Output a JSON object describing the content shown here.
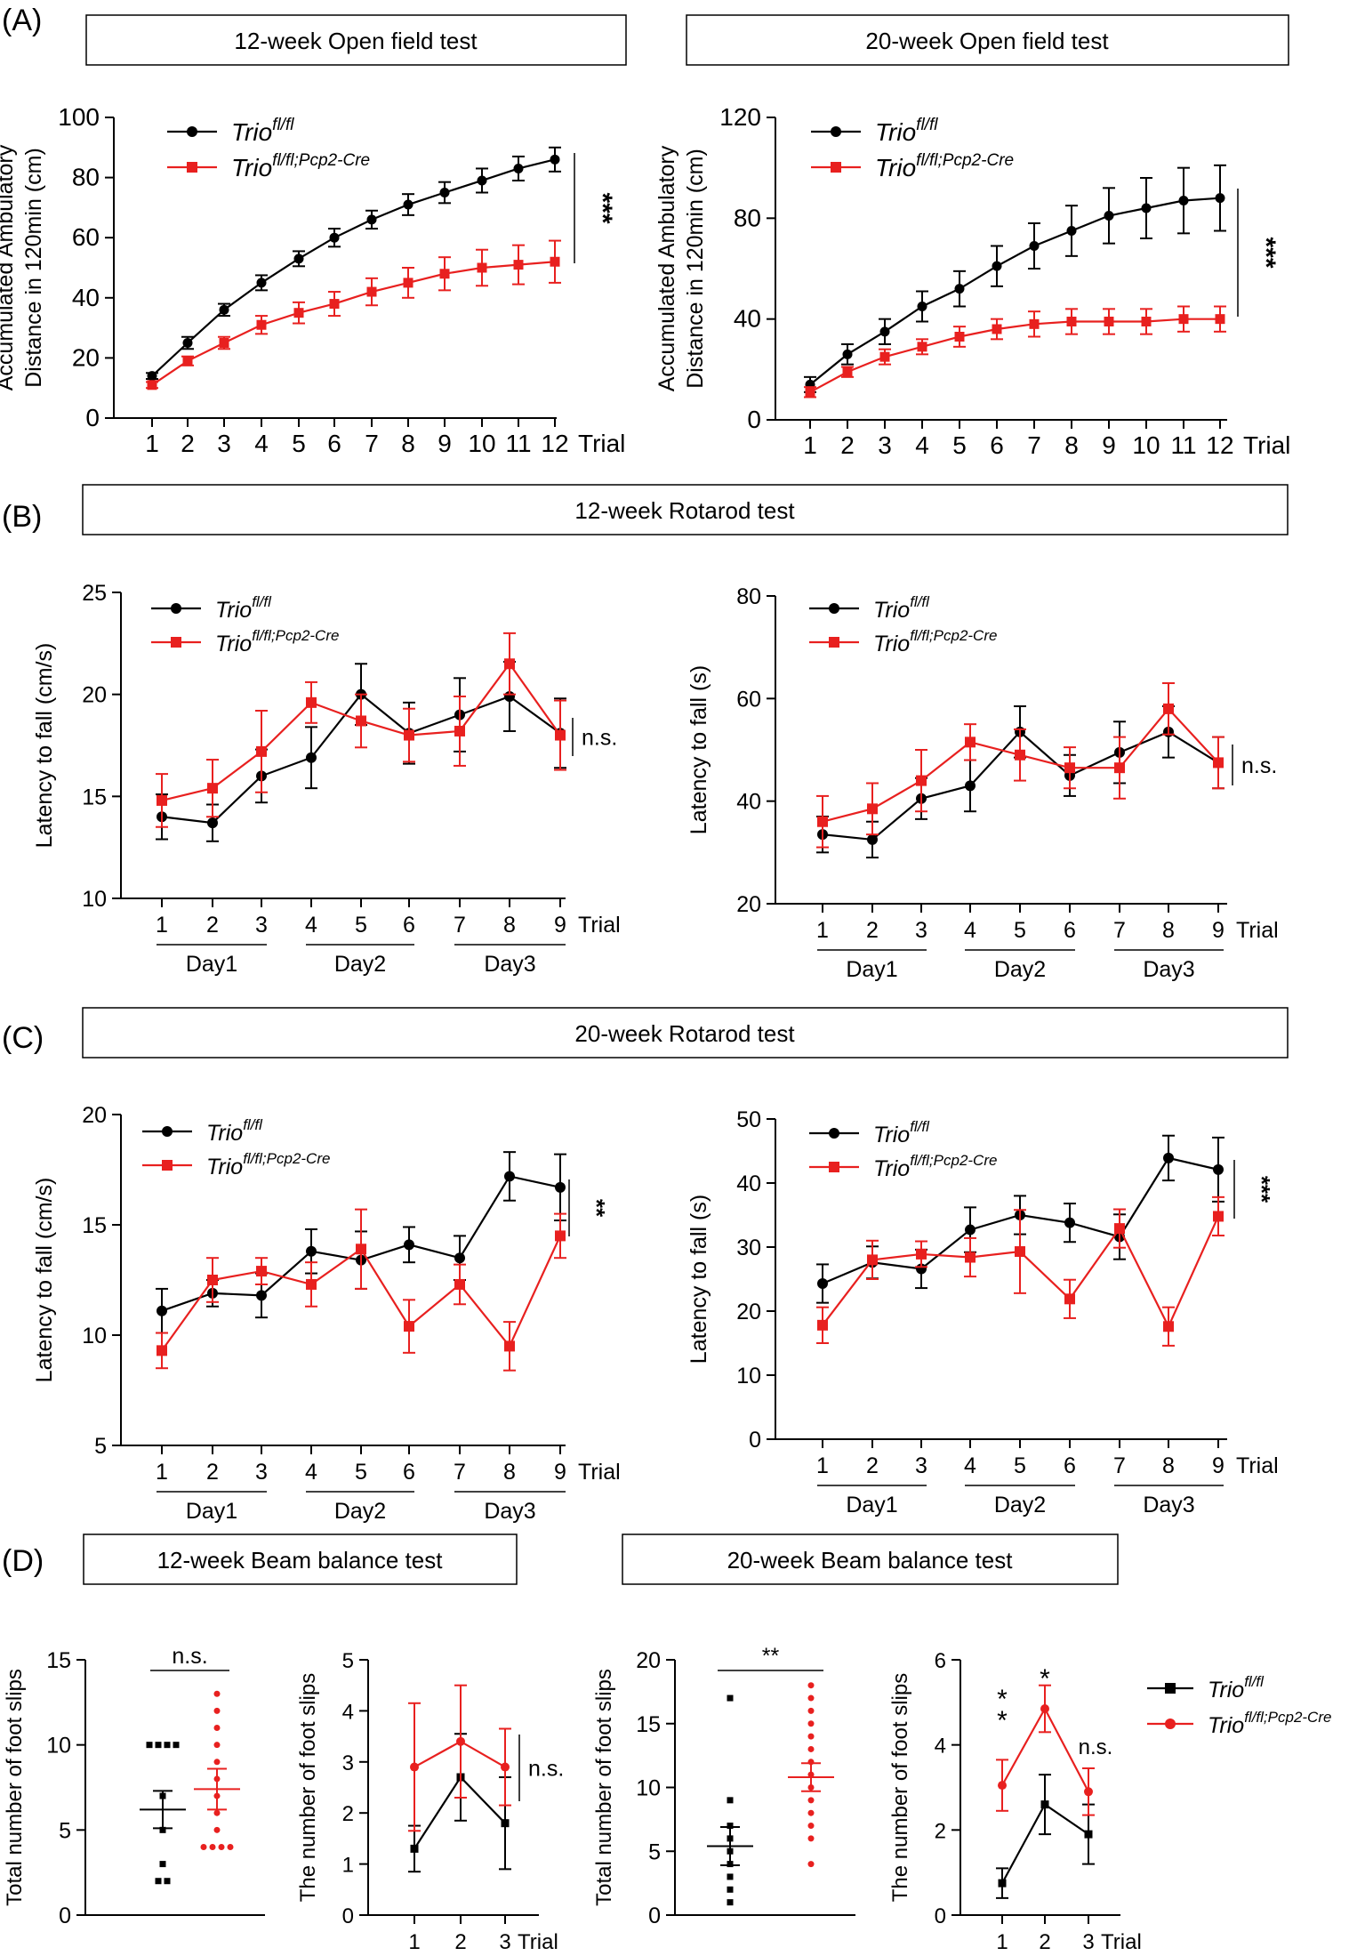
{
  "colors": {
    "black": "#000000",
    "red": "#e8201f"
  },
  "legend": {
    "trio": {
      "base": "Trio",
      "sup": "fl/fl"
    },
    "cre": {
      "base": "Trio",
      "sup": "fl/fl;Pcp2-Cre"
    }
  },
  "labels": {
    "trial": "Trial",
    "day1": "Day1",
    "day2": "Day2",
    "day3": "Day3",
    "ns": "n.s.",
    "p3": "***",
    "p2": "**",
    "p1": "*"
  },
  "panels": {
    "A": {
      "letter": "(A)",
      "title_left": "12-week Open field test",
      "title_right": "20-week Open field test"
    },
    "B": {
      "letter": "(B)",
      "title": "12-week Rotarod test"
    },
    "C": {
      "letter": "(C)",
      "title": "20-week Rotarod test"
    },
    "D": {
      "letter": "(D)",
      "title_left": "12-week Beam balance test",
      "title_right": "20-week Beam balance test"
    }
  },
  "chart_data": [
    {
      "id": "A1",
      "type": "line",
      "ylabel": [
        "Accumulated Ambulatory",
        "Distance in 120min (cm)"
      ],
      "ylim": [
        0,
        100
      ],
      "yticks": [
        0,
        20,
        40,
        60,
        80,
        100
      ],
      "x": [
        1,
        2,
        3,
        4,
        5,
        6,
        7,
        8,
        9,
        10,
        11,
        12
      ],
      "series": [
        {
          "name": "Trio fl/fl",
          "values": [
            14,
            25,
            36,
            45,
            53,
            60,
            66,
            71,
            75,
            79,
            83,
            86
          ],
          "err": [
            1,
            2,
            2,
            2.5,
            2.5,
            3,
            3,
            3.5,
            3.5,
            4,
            4,
            4
          ]
        },
        {
          "name": "Trio fl/fl;Pcp2-Cre",
          "values": [
            11,
            19,
            25,
            31,
            35,
            38,
            42,
            45,
            48,
            50,
            51,
            52
          ],
          "err": [
            1,
            1.5,
            2,
            3,
            3.5,
            4,
            4.5,
            5,
            5.5,
            6,
            6.5,
            7
          ]
        }
      ],
      "significance": "***"
    },
    {
      "id": "A2",
      "type": "line",
      "ylabel": [
        "Accumulated Ambulatory",
        "Distance in 120min (cm)"
      ],
      "ylim": [
        0,
        120
      ],
      "yticks": [
        0,
        40,
        80,
        120
      ],
      "x": [
        1,
        2,
        3,
        4,
        5,
        6,
        7,
        8,
        9,
        10,
        11,
        12
      ],
      "series": [
        {
          "name": "Trio fl/fl",
          "values": [
            14,
            26,
            35,
            45,
            52,
            61,
            69,
            75,
            81,
            84,
            87,
            88
          ],
          "err": [
            3,
            4,
            5,
            6,
            7,
            8,
            9,
            10,
            11,
            12,
            13,
            13
          ]
        },
        {
          "name": "Trio fl/fl;Pcp2-Cre",
          "values": [
            11,
            19,
            25,
            29,
            33,
            36,
            38,
            39,
            39,
            39,
            40,
            40
          ],
          "err": [
            2,
            2,
            3,
            3,
            4,
            4,
            5,
            5,
            5,
            5,
            5,
            5
          ]
        }
      ],
      "significance": "***"
    },
    {
      "id": "B1",
      "type": "line",
      "ylabel": [
        "Latency to fall (cm/s)"
      ],
      "ylim": [
        10,
        25
      ],
      "yticks": [
        10,
        15,
        20,
        25
      ],
      "x": [
        1,
        2,
        3,
        4,
        5,
        6,
        7,
        8,
        9
      ],
      "series": [
        {
          "name": "Trio fl/fl",
          "values": [
            14.0,
            13.7,
            16.0,
            16.9,
            20.0,
            18.1,
            19.0,
            19.9,
            18.1
          ],
          "err": [
            1.1,
            0.9,
            1.3,
            1.5,
            1.5,
            1.5,
            1.8,
            1.7,
            1.7
          ]
        },
        {
          "name": "Trio fl/fl;Pcp2-Cre",
          "values": [
            14.8,
            15.4,
            17.2,
            19.6,
            18.7,
            18.0,
            18.2,
            21.5,
            18.0
          ],
          "err": [
            1.3,
            1.4,
            2.0,
            1.0,
            1.3,
            1.3,
            1.7,
            1.5,
            1.7
          ]
        }
      ],
      "significance": "n.s."
    },
    {
      "id": "B2",
      "type": "line",
      "ylabel": [
        "Latency to fall (s)"
      ],
      "ylim": [
        20,
        80
      ],
      "yticks": [
        20,
        40,
        60,
        80
      ],
      "x": [
        1,
        2,
        3,
        4,
        5,
        6,
        7,
        8,
        9
      ],
      "series": [
        {
          "name": "Trio fl/fl",
          "values": [
            33.5,
            32.5,
            40.5,
            43,
            53.5,
            45,
            49.5,
            53.5,
            47.5
          ],
          "err": [
            3.5,
            3.5,
            4,
            5,
            5,
            4,
            6,
            5,
            5
          ]
        },
        {
          "name": "Trio fl/fl;Pcp2-Cre",
          "values": [
            36,
            38.5,
            44,
            51.5,
            49,
            46.5,
            46.5,
            58,
            47.5
          ],
          "err": [
            5,
            5,
            6,
            3.5,
            5,
            4,
            6,
            5,
            5
          ]
        }
      ],
      "significance": "n.s."
    },
    {
      "id": "C1",
      "type": "line",
      "ylabel": [
        "Latency to fall (cm/s)"
      ],
      "ylim": [
        5,
        20
      ],
      "yticks": [
        5,
        10,
        15,
        20
      ],
      "x": [
        1,
        2,
        3,
        4,
        5,
        6,
        7,
        8,
        9
      ],
      "series": [
        {
          "name": "Trio fl/fl",
          "values": [
            11.1,
            11.9,
            11.8,
            13.8,
            13.4,
            14.1,
            13.5,
            17.2,
            16.7
          ],
          "err": [
            1.0,
            0.6,
            1.0,
            1.0,
            1.3,
            0.8,
            1.0,
            1.1,
            1.5
          ]
        },
        {
          "name": "Trio fl/fl;Pcp2-Cre",
          "values": [
            9.3,
            12.5,
            12.9,
            12.3,
            13.9,
            10.4,
            12.3,
            9.5,
            14.5
          ],
          "err": [
            0.8,
            1.0,
            0.6,
            1.0,
            1.8,
            1.2,
            0.9,
            1.1,
            1.0
          ]
        }
      ],
      "significance": "**"
    },
    {
      "id": "C2",
      "type": "line",
      "ylabel": [
        "Latency to fall (s)"
      ],
      "ylim": [
        0,
        50
      ],
      "yticks": [
        0,
        10,
        20,
        30,
        40,
        50
      ],
      "x": [
        1,
        2,
        3,
        4,
        5,
        6,
        7,
        8,
        9
      ],
      "series": [
        {
          "name": "Trio fl/fl",
          "values": [
            24.3,
            27.6,
            26.6,
            32.7,
            35.0,
            33.8,
            31.6,
            43.9,
            42.1
          ],
          "err": [
            3,
            2.5,
            3,
            3.5,
            3,
            3,
            3.5,
            3.5,
            5
          ]
        },
        {
          "name": "Trio fl/fl;Pcp2-Cre",
          "values": [
            17.8,
            28.0,
            28.9,
            28.4,
            29.3,
            21.9,
            32.9,
            17.6,
            34.8
          ],
          "err": [
            2.8,
            3,
            2,
            3,
            6.5,
            3,
            3,
            3,
            3
          ]
        }
      ],
      "significance": "***"
    },
    {
      "id": "D1",
      "type": "scatter",
      "ylabel": [
        "Total number of foot slips"
      ],
      "ylim": [
        0,
        15
      ],
      "yticks": [
        0,
        5,
        10,
        15
      ],
      "series": [
        {
          "name": "Trio fl/fl",
          "points": [
            10,
            10,
            10,
            10,
            7,
            5,
            3,
            2,
            2
          ],
          "mean": 6.2,
          "sem": 1.1
        },
        {
          "name": "Trio fl/fl;Pcp2-Cre",
          "points": [
            13,
            12,
            11,
            10,
            9,
            8,
            7,
            6,
            5,
            4,
            4,
            4,
            4
          ],
          "mean": 7.4,
          "sem": 1.2
        }
      ],
      "significance": "n.s."
    },
    {
      "id": "D2",
      "type": "line",
      "ylabel": [
        "The number of foot slips"
      ],
      "ylim": [
        0,
        5
      ],
      "yticks": [
        0,
        1,
        2,
        3,
        4,
        5
      ],
      "x": [
        1,
        2,
        3
      ],
      "series": [
        {
          "name": "Trio fl/fl",
          "values": [
            1.3,
            2.7,
            1.8
          ],
          "err": [
            0.45,
            0.85,
            0.9
          ]
        },
        {
          "name": "Trio fl/fl;Pcp2-Cre",
          "values": [
            2.9,
            3.4,
            2.9
          ],
          "err": [
            1.25,
            1.1,
            0.75
          ]
        }
      ],
      "significance": "n.s."
    },
    {
      "id": "D3",
      "type": "scatter",
      "ylabel": [
        "Total number of foot slips"
      ],
      "ylim": [
        0,
        20
      ],
      "yticks": [
        0,
        5,
        10,
        15,
        20
      ],
      "series": [
        {
          "name": "Trio fl/fl",
          "points": [
            17,
            9,
            7,
            6,
            5,
            4,
            3,
            2,
            1
          ],
          "mean": 5.4,
          "sem": 1.5
        },
        {
          "name": "Trio fl/fl;Pcp2-Cre",
          "points": [
            18,
            17,
            16,
            15,
            14,
            13,
            12,
            11,
            10,
            9,
            8,
            7,
            6,
            4
          ],
          "mean": 10.8,
          "sem": 1.1
        }
      ],
      "significance": "**"
    },
    {
      "id": "D4",
      "type": "line",
      "ylabel": [
        "The number of foot slips"
      ],
      "ylim": [
        0,
        6
      ],
      "yticks": [
        0,
        2,
        4,
        6
      ],
      "x": [
        1,
        2,
        3
      ],
      "series": [
        {
          "name": "Trio fl/fl",
          "values": [
            0.75,
            2.6,
            1.9
          ],
          "err": [
            0.35,
            0.7,
            0.7
          ]
        },
        {
          "name": "Trio fl/fl;Pcp2-Cre",
          "values": [
            3.05,
            4.85,
            2.9
          ],
          "err": [
            0.6,
            0.55,
            0.55
          ]
        }
      ],
      "significance": [
        "**",
        "*",
        "n.s."
      ]
    }
  ]
}
